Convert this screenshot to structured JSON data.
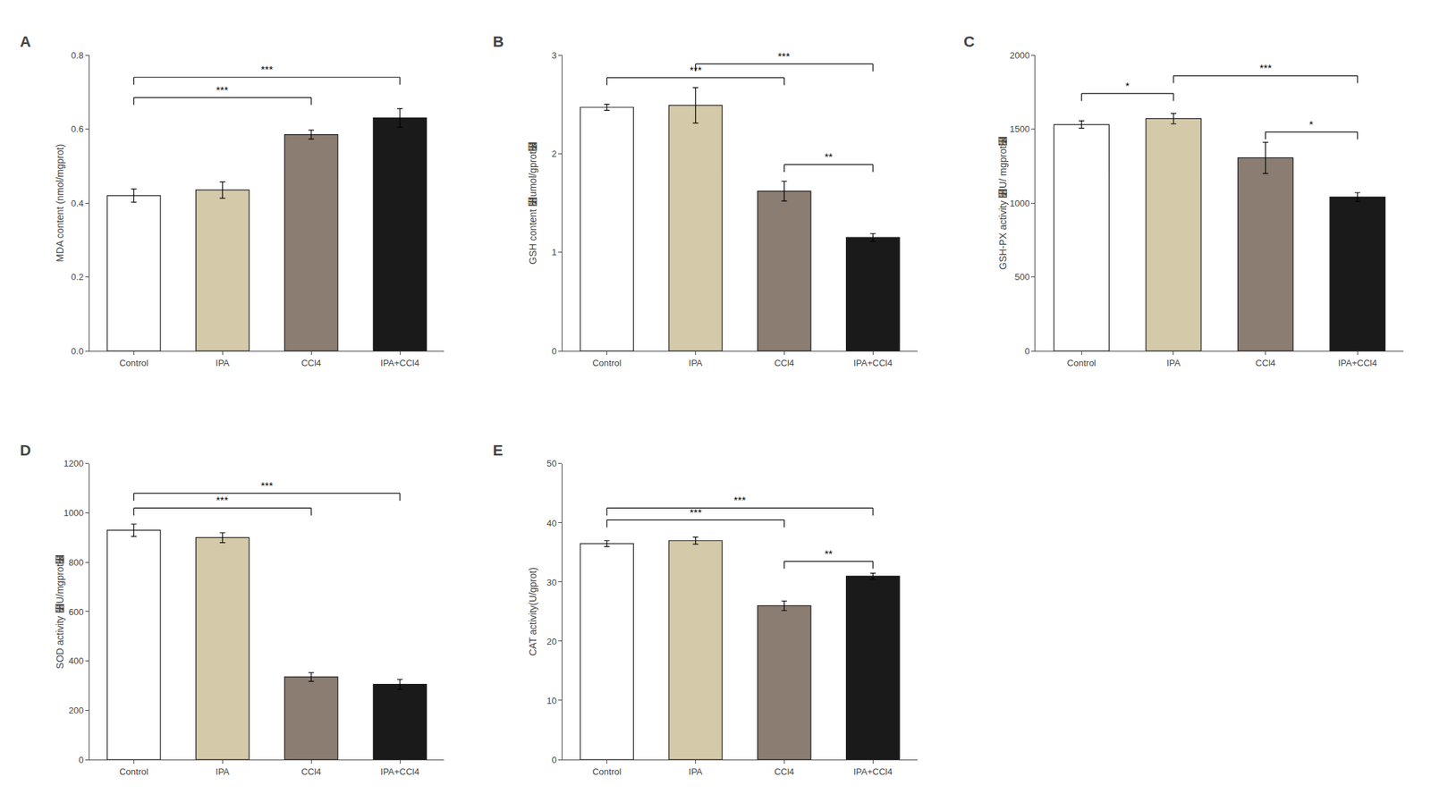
{
  "chart_data": [
    {
      "type": "bar",
      "title": "A",
      "categories": [
        "Control",
        "IPA",
        "CCl4",
        "IPA+CCl4"
      ],
      "values": [
        0.42,
        0.435,
        0.585,
        0.63
      ],
      "errors": [
        0.018,
        0.022,
        0.012,
        0.025
      ],
      "colors": [
        "#ffffff",
        "#d4c9a8",
        "#8b7d72",
        "#1a1a1a"
      ],
      "ylabel": "MDA content (nmol/mgprot)",
      "ylim": [
        0,
        0.8
      ],
      "yticks": [
        {
          "value": 0,
          "label": "0.0"
        },
        0.2,
        0.4,
        0.6,
        0.8
      ],
      "grid": false,
      "annotations": [
        {
          "x1": "Control",
          "x2": "CCl4",
          "y": 0.685,
          "text": "***"
        },
        {
          "x1": "Control",
          "x2": "IPA+CCl4",
          "y": 0.74,
          "text": "***"
        }
      ]
    },
    {
      "type": "bar",
      "title": "B",
      "categories": [
        "Control",
        "IPA",
        "CCl4",
        "IPA+CCl4"
      ],
      "values": [
        2.47,
        2.49,
        1.62,
        1.15
      ],
      "errors": [
        0.03,
        0.18,
        0.1,
        0.04
      ],
      "colors": [
        "#ffffff",
        "#d4c9a8",
        "#8b7d72",
        "#1a1a1a"
      ],
      "ylabel": "GSH content ⻻umol/gprot⻼",
      "ylim": [
        0,
        3
      ],
      "yticks": [
        0,
        1,
        2,
        3
      ],
      "grid": false,
      "annotations": [
        {
          "x1": "Control",
          "x2": "CCl4",
          "y": 2.77,
          "text": "***"
        },
        {
          "x1": "IPA",
          "x2": "IPA+CCl4",
          "y": 2.91,
          "text": "***"
        },
        {
          "x1": "CCl4",
          "x2": "IPA+CCl4",
          "y": 1.89,
          "text": "**"
        }
      ]
    },
    {
      "type": "bar",
      "title": "C",
      "categories": [
        "Control",
        "IPA",
        "CCl4",
        "IPA+CCl4"
      ],
      "values": [
        1530,
        1570,
        1305,
        1040
      ],
      "errors": [
        25,
        35,
        105,
        30
      ],
      "colors": [
        "#ffffff",
        "#d4c9a8",
        "#8b7d72",
        "#1a1a1a"
      ],
      "ylabel": "GSH-PX activity ⻻U/ mgprot⻼",
      "ylim": [
        0,
        2000
      ],
      "yticks": [
        0,
        500,
        1000,
        1500,
        2000
      ],
      "grid": false,
      "annotations": [
        {
          "x1": "Control",
          "x2": "IPA",
          "y": 1740,
          "text": "*"
        },
        {
          "x1": "IPA",
          "x2": "IPA+CCl4",
          "y": 1860,
          "text": "***"
        },
        {
          "x1": "CCl4",
          "x2": "IPA+CCl4",
          "y": 1480,
          "text": "*"
        }
      ]
    },
    {
      "type": "bar",
      "title": "D",
      "categories": [
        "Control",
        "IPA",
        "CCl4",
        "IPA+CCl4"
      ],
      "values": [
        930,
        900,
        335,
        305
      ],
      "errors": [
        25,
        20,
        18,
        20
      ],
      "colors": [
        "#ffffff",
        "#d4c9a8",
        "#8b7d72",
        "#1a1a1a"
      ],
      "ylabel": "SOD activity ⻻U/mgprot⻼",
      "ylim": [
        0,
        1200
      ],
      "yticks": [
        0,
        200,
        400,
        600,
        800,
        1000,
        1200
      ],
      "grid": false,
      "annotations": [
        {
          "x1": "Control",
          "x2": "CCl4",
          "y": 1020,
          "text": "***"
        },
        {
          "x1": "Control",
          "x2": "IPA+CCl4",
          "y": 1080,
          "text": "***"
        }
      ]
    },
    {
      "type": "bar",
      "title": "E",
      "categories": [
        "Control",
        "IPA",
        "CCl4",
        "IPA+CCl4"
      ],
      "values": [
        36.5,
        37.0,
        26.0,
        31.0
      ],
      "errors": [
        0.5,
        0.6,
        0.8,
        0.5
      ],
      "colors": [
        "#ffffff",
        "#d4c9a8",
        "#8b7d72",
        "#1a1a1a"
      ],
      "ylabel": "CAT activity(U/gprot)",
      "ylim": [
        0,
        50
      ],
      "yticks": [
        0,
        10,
        20,
        30,
        40,
        50
      ],
      "grid": false,
      "annotations": [
        {
          "x1": "Control",
          "x2": "CCl4",
          "y": 40.5,
          "text": "***"
        },
        {
          "x1": "Control",
          "x2": "IPA+CCl4",
          "y": 42.5,
          "text": "***"
        },
        {
          "x1": "CCl4",
          "x2": "IPA+CCl4",
          "y": 33.5,
          "text": "**"
        }
      ]
    }
  ]
}
